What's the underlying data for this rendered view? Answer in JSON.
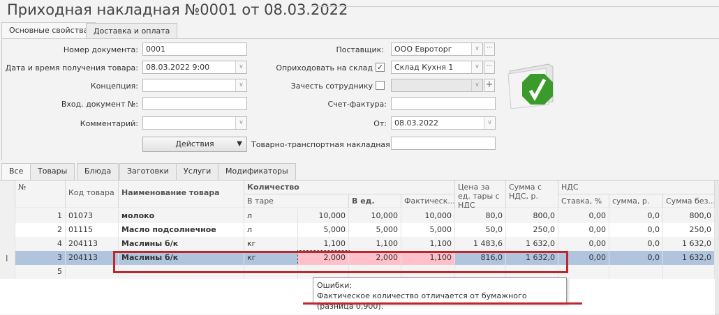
{
  "title": "Приходная накладная №0001 от 08.03.2022",
  "tabs": [
    "Основные свойства",
    "Доставка и оплата"
  ],
  "form": {
    "doc_number_label": "Номер документа:",
    "doc_number": "0001",
    "date_label": "Дата и время получения товара:",
    "date": "08.03.2022 9:00",
    "concept_label": "Концепция:",
    "concept": "",
    "incoming_doc_label": "Вход. документ №:",
    "incoming_doc": "",
    "comment_label": "Комментарий:",
    "comment": "",
    "actions_label": "Действия",
    "supplier_label": "Поставщик:",
    "supplier": "ООО Евроторг",
    "warehouse_label": "Оприходовать на склад",
    "warehouse_checked": true,
    "warehouse": "Склад Кухня 1",
    "employee_label": "Зачесть сотруднику",
    "employee_checked": false,
    "employee": "",
    "invoice_label": "Счет-фактура:",
    "invoice": "",
    "from_label": "От:",
    "from": "08.03.2022",
    "ttn_label": "Товарно-транспортная накладная",
    "ttn": ""
  },
  "status_icon": "green-check-folder-icon",
  "grid_tabs": [
    "Все",
    "Товары",
    "Блюда",
    "Заготовки",
    "Услуги",
    "Модификаторы"
  ],
  "grid": {
    "headers": {
      "num": "№",
      "code": "Код товара",
      "name": "Наименование товара",
      "qty": "Количество",
      "tare": "В таре",
      "unit_qty": "В ед.",
      "actual": "Фактическ...",
      "price": "Цена за ед. тары с НДС",
      "sum": "Сумма с НДС, р.",
      "vat": "НДС",
      "rate": "Ставка, %",
      "vat_sum": "сумма, р.",
      "sum_no_vat": "Сумма без..."
    },
    "rows": [
      {
        "num": "1",
        "code": "01073",
        "name": "молоко",
        "unit": "л",
        "tare": "10,000",
        "unit_qty": "10,000",
        "actual": "10,000",
        "price": "80,0",
        "sum": "800,0",
        "rate": "0,00",
        "vat_sum": "0,0",
        "sum_no_vat": "800,0"
      },
      {
        "num": "2",
        "code": "01115",
        "name": "Масло подсолнечное",
        "unit": "л",
        "tare": "5,000",
        "unit_qty": "5,000",
        "actual": "5,000",
        "price": "50,0",
        "sum": "250,0",
        "rate": "0,00",
        "vat_sum": "0,0",
        "sum_no_vat": "250,0"
      },
      {
        "num": "4",
        "code": "204113",
        "name": "Маслины б/к",
        "unit": "кг",
        "tare": "1,100",
        "unit_qty": "1,100",
        "actual": "1,100",
        "price": "1 483,6",
        "sum": "1 632,0",
        "rate": "0,00",
        "vat_sum": "0,0",
        "sum_no_vat": "1 632,0"
      },
      {
        "num": "3",
        "code": "204113",
        "name": "Маслины б/к",
        "unit": "кг",
        "tare": "2,000",
        "unit_qty": "2,000",
        "actual": "1,100",
        "price": "816,0",
        "sum": "1 632,0",
        "rate": "0,00",
        "vat_sum": "0,0",
        "sum_no_vat": "1 632,0",
        "selected": true,
        "error": true
      },
      {
        "num": "5",
        "code": "",
        "name": "",
        "unit": "",
        "tare": "",
        "unit_qty": "",
        "actual": "",
        "price": "",
        "sum": "",
        "rate": "",
        "vat_sum": "",
        "sum_no_vat": ""
      }
    ]
  },
  "tooltip": {
    "title": "Ошибки:",
    "message": "Фактическое количество отличается от бумажного (разница 0,900)."
  },
  "colors": {
    "selected": "#b0c4de",
    "error": "#ffc0cb",
    "highlight": "#c0272d",
    "check": "#3a9a2a"
  }
}
